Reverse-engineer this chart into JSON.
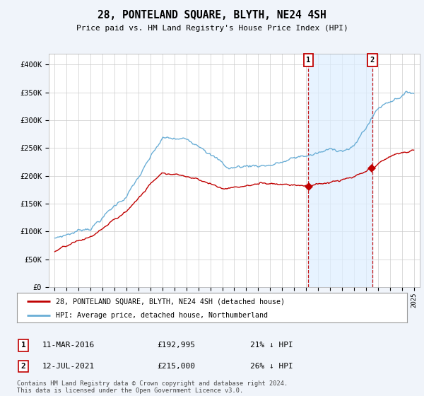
{
  "title": "28, PONTELAND SQUARE, BLYTH, NE24 4SH",
  "subtitle": "Price paid vs. HM Land Registry's House Price Index (HPI)",
  "ylim": [
    0,
    420000
  ],
  "yticks": [
    0,
    50000,
    100000,
    150000,
    200000,
    250000,
    300000,
    350000,
    400000
  ],
  "ytick_labels": [
    "£0",
    "£50K",
    "£100K",
    "£150K",
    "£200K",
    "£250K",
    "£300K",
    "£350K",
    "£400K"
  ],
  "hpi_color": "#6aaed6",
  "price_color": "#c00000",
  "marker1_date": 2016.19,
  "marker1_price": 192995,
  "marker2_date": 2021.53,
  "marker2_price": 215000,
  "legend_line1": "28, PONTELAND SQUARE, BLYTH, NE24 4SH (detached house)",
  "legend_line2": "HPI: Average price, detached house, Northumberland",
  "footer": "Contains HM Land Registry data © Crown copyright and database right 2024.\nThis data is licensed under the Open Government Licence v3.0.",
  "bg_color": "#f0f4fa",
  "plot_bg": "#ffffff",
  "shade_color": "#ddeeff",
  "grid_color": "#cccccc"
}
